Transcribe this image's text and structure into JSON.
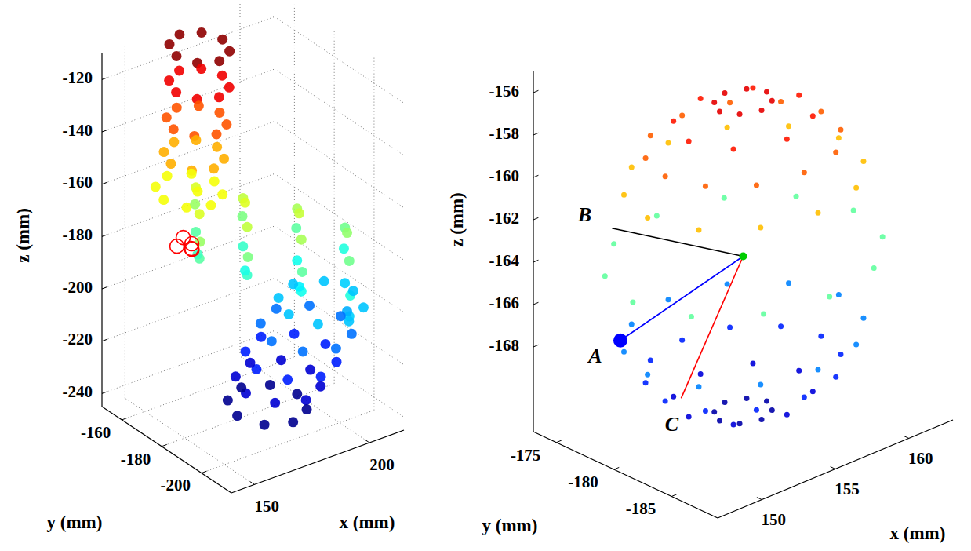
{
  "chart_data": [
    {
      "type": "scatter3d",
      "xlabel": "x (mm)",
      "ylabel": "y (mm)",
      "zlabel": "z (mm)",
      "xlim": [
        140,
        215
      ],
      "ylim": [
        -215,
        -150
      ],
      "zlim": [
        -245,
        -110
      ],
      "xticks": [
        150,
        200
      ],
      "yticks": [
        -200,
        -180,
        -160
      ],
      "zticks": [
        -240,
        -220,
        -200,
        -180,
        -160,
        -140,
        -120
      ],
      "grid": true,
      "points": [
        [
          182,
          -162,
          -112
        ],
        [
          179,
          -155,
          -112
        ],
        [
          172,
          -152,
          -112
        ],
        [
          165,
          -155,
          -112
        ],
        [
          162,
          -162,
          -112
        ],
        [
          165,
          -169,
          -112
        ],
        [
          172,
          -172,
          -112
        ],
        [
          179,
          -169,
          -112
        ],
        [
          181,
          -163,
          -125
        ],
        [
          178,
          -156,
          -125
        ],
        [
          171,
          -153,
          -125
        ],
        [
          164,
          -156,
          -125
        ],
        [
          161,
          -163,
          -125
        ],
        [
          164,
          -170,
          -125
        ],
        [
          171,
          -173,
          -125
        ],
        [
          178,
          -170,
          -125
        ],
        [
          179,
          -164,
          -138
        ],
        [
          176,
          -157,
          -138
        ],
        [
          169,
          -154,
          -138
        ],
        [
          162,
          -157,
          -138
        ],
        [
          159,
          -164,
          -138
        ],
        [
          162,
          -171,
          -138
        ],
        [
          169,
          -174,
          -138
        ],
        [
          176,
          -171,
          -138
        ],
        [
          177,
          -165,
          -150
        ],
        [
          174,
          -158,
          -150
        ],
        [
          167,
          -155,
          -150
        ],
        [
          160,
          -158,
          -150
        ],
        [
          157,
          -165,
          -150
        ],
        [
          160,
          -172,
          -150
        ],
        [
          167,
          -175,
          -150
        ],
        [
          174,
          -172,
          -150
        ],
        [
          175,
          -166,
          -162
        ],
        [
          171.8,
          -158.2,
          -162
        ],
        [
          164,
          -155,
          -162
        ],
        [
          156.2,
          -158.2,
          -162
        ],
        [
          153,
          -166,
          -162
        ],
        [
          156.2,
          -173.8,
          -162
        ],
        [
          164,
          -177,
          -162
        ],
        [
          171.8,
          -173.8,
          -162
        ],
        [
          173.2,
          -158.4,
          -174
        ],
        [
          171.1,
          -161.2,
          -165.5
        ],
        [
          166,
          -168,
          -162
        ],
        [
          160.9,
          -174.8,
          -165.5
        ],
        [
          158.8,
          -177.6,
          -174
        ],
        [
          160.9,
          -174.8,
          -182.5
        ],
        [
          166,
          -168,
          -186
        ],
        [
          171.1,
          -161.2,
          -182.5
        ],
        [
          185.8,
          -167.6,
          -178
        ],
        [
          183.5,
          -170.6,
          -168.8
        ],
        [
          178,
          -178,
          -165
        ],
        [
          172.5,
          -185.4,
          -168.8
        ],
        [
          170.2,
          -188.4,
          -178
        ],
        [
          172.5,
          -185.4,
          -187.2
        ],
        [
          178,
          -178,
          -191
        ],
        [
          183.5,
          -170.6,
          -187.2
        ],
        [
          200.4,
          -177.8,
          -182
        ],
        [
          197.9,
          -181.1,
          -172.1
        ],
        [
          192,
          -189,
          -168
        ],
        [
          186.1,
          -196.9,
          -172.1
        ],
        [
          183.6,
          -200.2,
          -182
        ],
        [
          186.1,
          -196.9,
          -191.9
        ],
        [
          192,
          -189,
          -196
        ],
        [
          197.9,
          -181.1,
          -191.9
        ],
        [
          214,
          -186,
          -190
        ],
        [
          211.4,
          -189.5,
          -179.4
        ],
        [
          205,
          -198,
          -175
        ],
        [
          198.6,
          -206.5,
          -179.4
        ],
        [
          196,
          -210,
          -190
        ],
        [
          198.6,
          -206.5,
          -200.6
        ],
        [
          205,
          -198,
          -205
        ],
        [
          211.4,
          -189.5,
          -200.6
        ],
        [
          212,
          -193,
          -202
        ],
        [
          207.9,
          -183.1,
          -202
        ],
        [
          198,
          -179,
          -202
        ],
        [
          188.1,
          -183.1,
          -202
        ],
        [
          184,
          -193,
          -202
        ],
        [
          188.1,
          -202.9,
          -202
        ],
        [
          198,
          -207,
          -202
        ],
        [
          207.9,
          -202.9,
          -202
        ],
        [
          210,
          -189,
          -213
        ],
        [
          205.6,
          -178.4,
          -213
        ],
        [
          195,
          -174,
          -213
        ],
        [
          184.4,
          -178.4,
          -213
        ],
        [
          180,
          -189,
          -213
        ],
        [
          184.4,
          -199.6,
          -213
        ],
        [
          195,
          -204,
          -213
        ],
        [
          205.6,
          -199.6,
          -213
        ],
        [
          206,
          -186,
          -224
        ],
        [
          201.6,
          -175.4,
          -224
        ],
        [
          191,
          -171,
          -224
        ],
        [
          180.4,
          -175.4,
          -224
        ],
        [
          176,
          -186,
          -224
        ],
        [
          180.4,
          -196.6,
          -224
        ],
        [
          191,
          -201,
          -224
        ],
        [
          201.6,
          -196.6,
          -224
        ],
        [
          202,
          -183,
          -234
        ],
        [
          197.9,
          -173.1,
          -234
        ],
        [
          188,
          -169,
          -234
        ],
        [
          178.1,
          -173.1,
          -234
        ],
        [
          174,
          -183,
          -234
        ],
        [
          178.1,
          -192.9,
          -234
        ],
        [
          188,
          -197,
          -234
        ],
        [
          197.9,
          -192.9,
          -234
        ],
        [
          198,
          -181,
          -243
        ],
        [
          194.2,
          -171.8,
          -243
        ],
        [
          185,
          -168,
          -243
        ],
        [
          175.8,
          -171.8,
          -243
        ],
        [
          172,
          -181,
          -243
        ],
        [
          175.8,
          -190.2,
          -243
        ],
        [
          185,
          -194,
          -243
        ],
        [
          194.2,
          -190.2,
          -243
        ]
      ],
      "circles": {
        "color": "#ff0000",
        "marker": "open_circle",
        "points": [
          [
            158,
            -170,
            -176
          ],
          [
            160,
            -172,
            -178
          ],
          [
            157,
            -168,
            -180
          ],
          [
            161,
            -171,
            -181
          ],
          [
            159,
            -173,
            -179
          ]
        ]
      }
    },
    {
      "type": "scatter3d",
      "xlabel": "x (mm)",
      "ylabel": "y (mm)",
      "zlabel": "z (mm)",
      "xlim": [
        147,
        163
      ],
      "ylim": [
        -189,
        -173
      ],
      "zlim": [
        -172,
        -155
      ],
      "xticks": [
        150,
        155,
        160
      ],
      "yticks": [
        -185,
        -180,
        -175
      ],
      "zticks": [
        -168,
        -166,
        -164,
        -162,
        -160,
        -158,
        -156
      ],
      "grid": false,
      "points": [
        [
          156.6,
          -181,
          -156.7
        ],
        [
          156.1,
          -179.9,
          -156.7
        ],
        [
          155,
          -179.4,
          -156.7
        ],
        [
          153.9,
          -179.9,
          -156.7
        ],
        [
          153.4,
          -181,
          -156.7
        ],
        [
          153.9,
          -182.1,
          -156.7
        ],
        [
          155,
          -182.6,
          -156.7
        ],
        [
          156.1,
          -182.1,
          -156.7
        ],
        [
          158.8,
          -181,
          -157.5
        ],
        [
          157.7,
          -178.4,
          -157.5
        ],
        [
          155,
          -177.3,
          -157.5
        ],
        [
          152.3,
          -178.4,
          -157.5
        ],
        [
          151.3,
          -181,
          -157.5
        ],
        [
          152.3,
          -183.6,
          -157.5
        ],
        [
          155,
          -184.8,
          -157.5
        ],
        [
          157.7,
          -183.6,
          -157.5
        ],
        [
          160.3,
          -181,
          -158.7
        ],
        [
          159.6,
          -178.4,
          -158.7
        ],
        [
          157.7,
          -176.4,
          -158.7
        ],
        [
          155,
          -175.7,
          -158.7
        ],
        [
          152.3,
          -176.4,
          -158.7
        ],
        [
          150.4,
          -178.4,
          -158.7
        ],
        [
          149.7,
          -181,
          -158.7
        ],
        [
          150.4,
          -183.6,
          -158.7
        ],
        [
          152.3,
          -185.6,
          -158.7
        ],
        [
          155,
          -186.3,
          -158.7
        ],
        [
          157.7,
          -185.6,
          -158.7
        ],
        [
          159.6,
          -183.6,
          -158.7
        ],
        [
          161.5,
          -181,
          -160.3
        ],
        [
          160.6,
          -177.8,
          -160.3
        ],
        [
          158.3,
          -175.4,
          -160.3
        ],
        [
          155,
          -174.5,
          -160.3
        ],
        [
          151.8,
          -175.4,
          -160.3
        ],
        [
          149.4,
          -177.8,
          -160.3
        ],
        [
          148.5,
          -181,
          -160.3
        ],
        [
          149.4,
          -184.3,
          -160.3
        ],
        [
          151.8,
          -186.6,
          -160.3
        ],
        [
          155,
          -187.5,
          -160.3
        ],
        [
          158.3,
          -186.6,
          -160.3
        ],
        [
          160.6,
          -184.3,
          -160.3
        ],
        [
          162.5,
          -181,
          -164
        ],
        [
          161.5,
          -177.3,
          -164
        ],
        [
          158.8,
          -174.5,
          -164
        ],
        [
          155,
          -173.5,
          -164
        ],
        [
          151.3,
          -174.5,
          -164
        ],
        [
          148.5,
          -177.3,
          -164
        ],
        [
          147.5,
          -181,
          -164
        ],
        [
          148.5,
          -184.8,
          -164
        ],
        [
          151.3,
          -187.5,
          -164
        ],
        [
          155,
          -188.5,
          -164
        ],
        [
          158.8,
          -187.5,
          -164
        ],
        [
          161.5,
          -184.8,
          -164
        ],
        [
          161.5,
          -181,
          -167.7
        ],
        [
          160.6,
          -177.8,
          -167.7
        ],
        [
          158.3,
          -175.4,
          -167.7
        ],
        [
          155,
          -174.5,
          -167.7
        ],
        [
          151.8,
          -175.4,
          -167.7
        ],
        [
          149.4,
          -177.8,
          -167.7
        ],
        [
          148.5,
          -181,
          -167.7
        ],
        [
          149.4,
          -184.3,
          -167.7
        ],
        [
          151.8,
          -186.6,
          -167.7
        ],
        [
          155,
          -187.5,
          -167.7
        ],
        [
          158.3,
          -186.6,
          -167.7
        ],
        [
          160.6,
          -184.3,
          -167.7
        ],
        [
          160.3,
          -181,
          -169.3
        ],
        [
          159.6,
          -178.4,
          -169.3
        ],
        [
          157.7,
          -176.4,
          -169.3
        ],
        [
          155,
          -175.7,
          -169.3
        ],
        [
          152.3,
          -176.4,
          -169.3
        ],
        [
          150.4,
          -178.4,
          -169.3
        ],
        [
          149.7,
          -181,
          -169.3
        ],
        [
          150.4,
          -183.6,
          -169.3
        ],
        [
          152.3,
          -185.6,
          -169.3
        ],
        [
          155,
          -186.3,
          -169.3
        ],
        [
          157.7,
          -185.6,
          -169.3
        ],
        [
          159.6,
          -183.6,
          -169.3
        ],
        [
          158.8,
          -181,
          -170.5
        ],
        [
          157.7,
          -178.4,
          -170.5
        ],
        [
          155,
          -177.3,
          -170.5
        ],
        [
          152.3,
          -178.4,
          -170.5
        ],
        [
          151.3,
          -181,
          -170.5
        ],
        [
          152.3,
          -183.6,
          -170.5
        ],
        [
          155,
          -184.8,
          -170.5
        ],
        [
          157.7,
          -183.6,
          -170.5
        ],
        [
          156.6,
          -181,
          -171.3
        ],
        [
          156.1,
          -179.9,
          -171.3
        ],
        [
          155,
          -179.4,
          -171.3
        ],
        [
          153.9,
          -179.9,
          -171.3
        ],
        [
          153.4,
          -181,
          -171.3
        ],
        [
          153.9,
          -182.1,
          -171.3
        ],
        [
          155,
          -182.6,
          -171.3
        ],
        [
          156.1,
          -182.1,
          -171.3
        ]
      ],
      "center": {
        "point": [
          155,
          -181,
          -164
        ],
        "color": "#00cc00"
      },
      "annotations": [
        {
          "text": "A",
          "point": [
            149,
            -178,
            -167
          ],
          "color": "#0000ff",
          "marker": "circle"
        },
        {
          "text": "B",
          "point": [
            150,
            -176,
            -162.5
          ],
          "color": "#000000"
        },
        {
          "text": "C",
          "point": [
            150,
            -182,
            -169
          ],
          "color": "#ff0000"
        }
      ]
    }
  ]
}
